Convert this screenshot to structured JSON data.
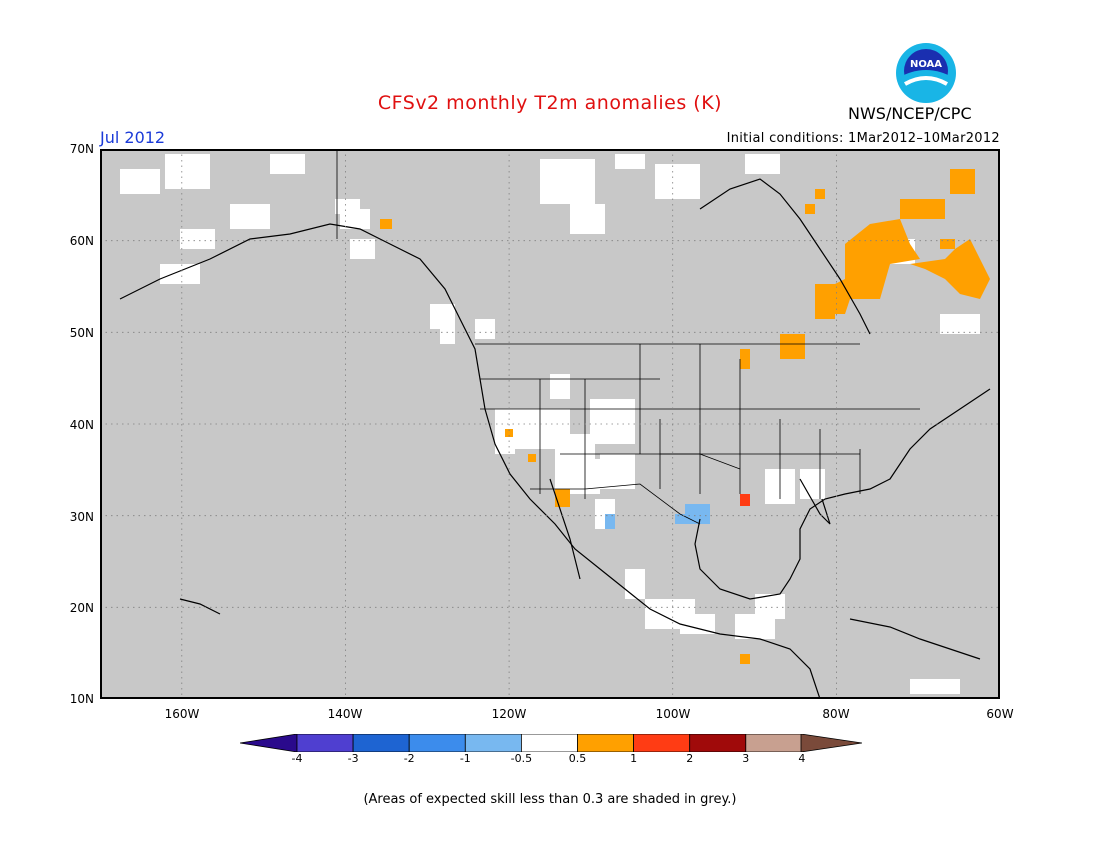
{
  "header": {
    "title": "CFSv2 monthly T2m anomalies (K)",
    "month": "Jul 2012",
    "initial_conditions": "Initial conditions: 1Mar2012–10Mar2012",
    "agency": "NWS/NCEP/CPC",
    "logo_text": "NOAA"
  },
  "map": {
    "region": "North America",
    "lat_range": [
      10,
      70
    ],
    "lon_range": [
      -170,
      -60
    ],
    "lat_labels": [
      "70N",
      "60N",
      "50N",
      "40N",
      "30N",
      "20N",
      "10N"
    ],
    "lon_labels": [
      "160W",
      "140W",
      "120W",
      "100W",
      "80W",
      "60W"
    ],
    "background_color": "#c8c8c8",
    "grid": "dotted"
  },
  "colorbar": {
    "labels": [
      "-4",
      "-3",
      "-2",
      "-1",
      "-0.5",
      "0.5",
      "1",
      "2",
      "3",
      "4"
    ],
    "colors": [
      "#2a0a8c",
      "#4f3fd0",
      "#1e64d2",
      "#3c8cec",
      "#78b8f0",
      "#ffffff",
      "#ffa000",
      "#ff3c14",
      "#a00a0a",
      "#c8a090",
      "#7a4a3a"
    ]
  },
  "footnote": "(Areas of expected skill less than 0.3 are shaded in grey.)"
}
